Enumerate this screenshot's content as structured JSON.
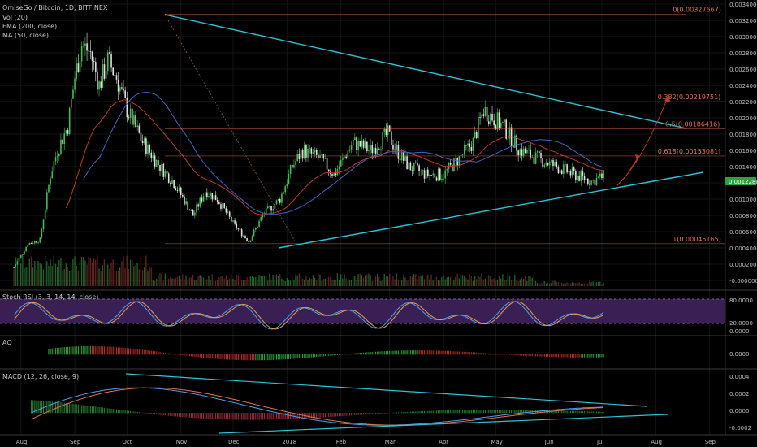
{
  "legend": {
    "title": "OmiseGo / Bitcoin, 1D, BITFINEX",
    "vol": "Vol (20)",
    "ema": "EMA (200, close)",
    "ma": "MA (50, close)"
  },
  "price_axis": [
    "0.00340000",
    "0.00320000",
    "0.00300000",
    "0.00280000",
    "0.00260000",
    "0.00240000",
    "0.00220000",
    "0.00200000",
    "0.00180000",
    "0.00160000",
    "0.00140000",
    "0.00120000",
    "0.00100000",
    "0.00080000",
    "0.00060000",
    "0.00040000",
    "0.00020000",
    "-0.00000000"
  ],
  "current_price": "0.00122800",
  "fib_levels": [
    {
      "label": "0(0.00327667)",
      "value": 0.00327667
    },
    {
      "label": "0.382(0.00219751)",
      "value": 0.00219751
    },
    {
      "label": "0.5(0.00186416)",
      "value": 0.00186416
    },
    {
      "label": "0.618(0.00153081)",
      "value": 0.00153081
    },
    {
      "label": "1(0.00045165)",
      "value": 0.00045165
    }
  ],
  "stoch": {
    "label": "Stoch RSI (3, 3, 14, 14, close)",
    "ticks": [
      "80.0000",
      "20.0000",
      "0.0000"
    ]
  },
  "ao": {
    "label": "AO",
    "ticks": [
      "0.0000"
    ]
  },
  "macd": {
    "label": "MACD (12, 26, close, 9)",
    "ticks": [
      "0.0004",
      "0.0002",
      "0.0000",
      "-0.0002"
    ]
  },
  "x_axis": [
    "Aug",
    "Sep",
    "Oct",
    "Nov",
    "Dec",
    "2018",
    "Feb",
    "Mar",
    "Apr",
    "May",
    "Jun",
    "Jul",
    "Aug",
    "Sep"
  ],
  "colors": {
    "up": "#3fbf4f",
    "down": "#e0e0e0",
    "trend": "#29c4d8",
    "ema": "#c0392b",
    "ma": "#3c64c8",
    "fib": "#e8704a",
    "stoch_bg": "#3a1f55"
  },
  "chart_data": {
    "type": "candlestick",
    "title": "OmiseGo / Bitcoin, 1D, BITFINEX",
    "x_range": [
      "2017-07-20",
      "2018-09-10"
    ],
    "ylim": [
      0.0,
      0.0034
    ],
    "price_path": [
      [
        "2017-07-28",
        0.00016
      ],
      [
        "2017-08-05",
        0.00045
      ],
      [
        "2017-08-12",
        0.0005
      ],
      [
        "2017-08-18",
        0.0013
      ],
      [
        "2017-08-22",
        0.0016
      ],
      [
        "2017-08-28",
        0.0019
      ],
      [
        "2017-09-01",
        0.0025
      ],
      [
        "2017-09-05",
        0.0029
      ],
      [
        "2017-09-10",
        0.0028
      ],
      [
        "2017-09-15",
        0.0024
      ],
      [
        "2017-09-20",
        0.0027
      ],
      [
        "2017-09-25",
        0.0025
      ],
      [
        "2017-10-01",
        0.0021
      ],
      [
        "2017-10-10",
        0.0017
      ],
      [
        "2017-10-20",
        0.0014
      ],
      [
        "2017-10-28",
        0.0012
      ],
      [
        "2017-11-08",
        0.0008
      ],
      [
        "2017-11-15",
        0.0011
      ],
      [
        "2017-11-22",
        0.001
      ],
      [
        "2017-12-01",
        0.0007
      ],
      [
        "2017-12-10",
        0.00048
      ],
      [
        "2017-12-18",
        0.0008
      ],
      [
        "2017-12-28",
        0.001
      ],
      [
        "2018-01-04",
        0.0014
      ],
      [
        "2018-01-10",
        0.0016
      ],
      [
        "2018-01-20",
        0.0015
      ],
      [
        "2018-01-28",
        0.0013
      ],
      [
        "2018-02-08",
        0.0017
      ],
      [
        "2018-02-18",
        0.0016
      ],
      [
        "2018-02-28",
        0.0018
      ],
      [
        "2018-03-05",
        0.0016
      ],
      [
        "2018-03-12",
        0.0014
      ],
      [
        "2018-03-22",
        0.0013
      ],
      [
        "2018-04-01",
        0.0013
      ],
      [
        "2018-04-10",
        0.0015
      ],
      [
        "2018-04-18",
        0.0017
      ],
      [
        "2018-04-24",
        0.0021
      ],
      [
        "2018-05-05",
        0.0019
      ],
      [
        "2018-05-15",
        0.0016
      ],
      [
        "2018-05-25",
        0.0015
      ],
      [
        "2018-06-05",
        0.0014
      ],
      [
        "2018-06-15",
        0.0013
      ],
      [
        "2018-06-25",
        0.00122
      ],
      [
        "2018-07-02",
        0.00128
      ]
    ]
  }
}
